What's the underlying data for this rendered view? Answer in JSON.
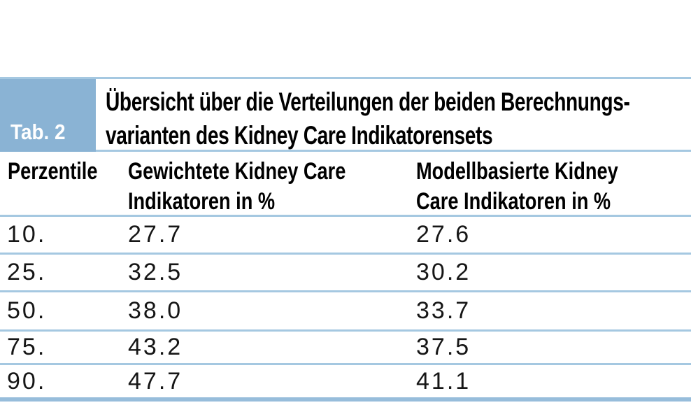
{
  "figure": {
    "tab_label": "Tab. 2",
    "title_line1": "Übersicht über die Verteilungen der beiden Berechnungs-",
    "title_line2": "varianten des Kidney Care Indikatorensets"
  },
  "table": {
    "headers": {
      "col1": "Perzentile",
      "col2_line1": "Gewichtete Kidney Care",
      "col2_line2": "Indikatoren in %",
      "col3_line1": "Modellbasierte Kidney",
      "col3_line2": "Care Indikatoren in %"
    },
    "rows": [
      {
        "percentile": "10.",
        "weighted": "27.7",
        "model_based": "27.6"
      },
      {
        "percentile": "25.",
        "weighted": "32.5",
        "model_based": "30.2"
      },
      {
        "percentile": "50.",
        "weighted": "38.0",
        "model_based": "33.7"
      },
      {
        "percentile": "75.",
        "weighted": "43.2",
        "model_based": "37.5"
      },
      {
        "percentile": "90.",
        "weighted": "47.7",
        "model_based": "41.1"
      }
    ]
  },
  "colors": {
    "badge_blue": "#8ab3d4",
    "rule_blue": "#a5c8e1",
    "bottom_rule_blue": "#97bddb"
  },
  "chart_data": {
    "type": "table",
    "title": "Übersicht über die Verteilungen der beiden Berechnungsvarianten des Kidney Care Indikatorensets",
    "columns": [
      "Perzentile",
      "Gewichtete Kidney Care Indikatoren in %",
      "Modellbasierte Kidney Care Indikatoren in %"
    ],
    "rows": [
      [
        "10.",
        27.7,
        27.6
      ],
      [
        "25.",
        32.5,
        30.2
      ],
      [
        "50.",
        38.0,
        33.7
      ],
      [
        "75.",
        43.2,
        37.5
      ],
      [
        "90.",
        47.7,
        41.1
      ]
    ]
  }
}
